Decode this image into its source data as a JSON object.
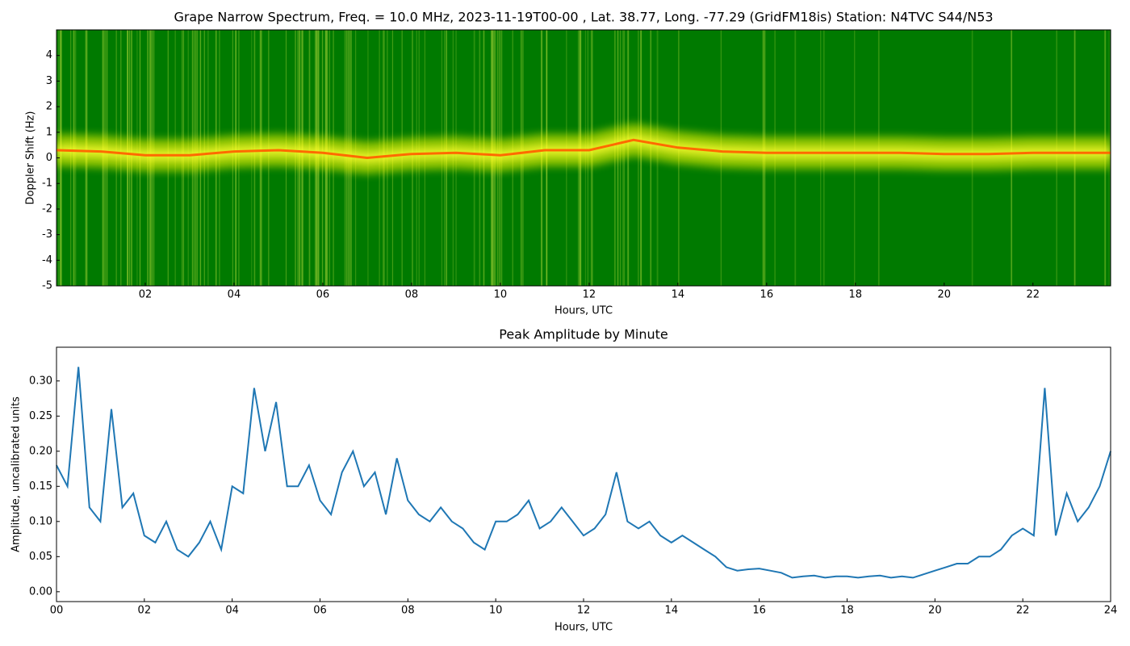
{
  "chart_data": [
    {
      "type": "spectrogram",
      "title": "Grape Narrow Spectrum, Freq. = 10.0 MHz, 2023-11-19T00-00 , Lat.  38.77, Long. -77.29 (GridFM18is) Station: N4TVC S44/N53",
      "xlabel": "Hours, UTC",
      "ylabel": "Doppler Shift (Hz)",
      "background": "#007a00",
      "color": "#ff6a00",
      "x": [
        0,
        1,
        2,
        3,
        4,
        5,
        6,
        7,
        8,
        9,
        10,
        11,
        12,
        13,
        14,
        15,
        16,
        17,
        18,
        19,
        20,
        21,
        22,
        23,
        23.75
      ],
      "values": [
        0.3,
        0.25,
        0.1,
        0.1,
        0.25,
        0.3,
        0.2,
        0.0,
        0.15,
        0.2,
        0.1,
        0.3,
        0.3,
        0.7,
        0.4,
        0.25,
        0.2,
        0.2,
        0.2,
        0.2,
        0.15,
        0.15,
        0.2,
        0.2,
        0.2
      ],
      "xlim": [
        0,
        23.75
      ],
      "xticks": [
        {
          "value": 2,
          "label": "02"
        },
        {
          "value": 4,
          "label": "04"
        },
        {
          "value": 6,
          "label": "06"
        },
        {
          "value": 8,
          "label": "08"
        },
        {
          "value": 10,
          "label": "10"
        },
        {
          "value": 12,
          "label": "12"
        },
        {
          "value": 14,
          "label": "14"
        },
        {
          "value": 16,
          "label": "16"
        },
        {
          "value": 18,
          "label": "18"
        },
        {
          "value": 20,
          "label": "20"
        },
        {
          "value": 22,
          "label": "22"
        }
      ],
      "ylim": [
        -5,
        5
      ],
      "yticks": [
        -5,
        -4,
        -3,
        -2,
        -1,
        0,
        1,
        2,
        3,
        4
      ]
    },
    {
      "type": "line",
      "title": "Peak Amplitude by Minute",
      "xlabel": "Hours, UTC",
      "ylabel": "Amplitude, uncalibrated units",
      "color": "#1f77b4",
      "x": [
        0,
        0.25,
        0.5,
        0.75,
        1,
        1.25,
        1.5,
        1.75,
        2,
        2.25,
        2.5,
        2.75,
        3,
        3.25,
        3.5,
        3.75,
        4,
        4.25,
        4.5,
        4.75,
        5,
        5.25,
        5.5,
        5.75,
        6,
        6.25,
        6.5,
        6.75,
        7,
        7.25,
        7.5,
        7.75,
        8,
        8.25,
        8.5,
        8.75,
        9,
        9.25,
        9.5,
        9.75,
        10,
        10.25,
        10.5,
        10.75,
        11,
        11.25,
        11.5,
        11.75,
        12,
        12.25,
        12.5,
        12.75,
        13,
        13.25,
        13.5,
        13.75,
        14,
        14.25,
        14.5,
        14.75,
        15,
        15.25,
        15.5,
        15.75,
        16,
        16.25,
        16.5,
        16.75,
        17,
        17.25,
        17.5,
        17.75,
        18,
        18.25,
        18.5,
        18.75,
        19,
        19.25,
        19.5,
        19.75,
        20,
        20.25,
        20.5,
        20.75,
        21,
        21.25,
        21.5,
        21.75,
        22,
        22.25,
        22.5,
        22.75,
        23,
        23.25,
        23.5,
        23.75,
        24
      ],
      "values": [
        0.18,
        0.15,
        0.32,
        0.12,
        0.1,
        0.26,
        0.12,
        0.14,
        0.08,
        0.07,
        0.1,
        0.06,
        0.05,
        0.07,
        0.1,
        0.06,
        0.15,
        0.14,
        0.29,
        0.2,
        0.27,
        0.15,
        0.15,
        0.18,
        0.13,
        0.11,
        0.17,
        0.2,
        0.15,
        0.17,
        0.11,
        0.19,
        0.13,
        0.11,
        0.1,
        0.12,
        0.1,
        0.09,
        0.07,
        0.06,
        0.1,
        0.1,
        0.11,
        0.13,
        0.09,
        0.1,
        0.12,
        0.1,
        0.08,
        0.09,
        0.11,
        0.17,
        0.1,
        0.09,
        0.1,
        0.08,
        0.07,
        0.08,
        0.07,
        0.06,
        0.05,
        0.035,
        0.03,
        0.032,
        0.033,
        0.03,
        0.027,
        0.02,
        0.022,
        0.023,
        0.02,
        0.022,
        0.022,
        0.02,
        0.022,
        0.023,
        0.02,
        0.022,
        0.02,
        0.025,
        0.03,
        0.035,
        0.04,
        0.04,
        0.05,
        0.05,
        0.06,
        0.08,
        0.09,
        0.08,
        0.29,
        0.08,
        0.14,
        0.1,
        0.12,
        0.15,
        0.2
      ],
      "xlim": [
        0,
        24
      ],
      "xticks": [
        {
          "value": 0,
          "label": "00"
        },
        {
          "value": 2,
          "label": "02"
        },
        {
          "value": 4,
          "label": "04"
        },
        {
          "value": 6,
          "label": "06"
        },
        {
          "value": 8,
          "label": "08"
        },
        {
          "value": 10,
          "label": "10"
        },
        {
          "value": 12,
          "label": "12"
        },
        {
          "value": 14,
          "label": "14"
        },
        {
          "value": 16,
          "label": "16"
        },
        {
          "value": 18,
          "label": "18"
        },
        {
          "value": 20,
          "label": "20"
        },
        {
          "value": 22,
          "label": "22"
        },
        {
          "value": 24,
          "label": "24"
        }
      ],
      "ylim": [
        -0.014,
        0.348
      ],
      "yticks": [
        {
          "value": 0,
          "label": "0.00"
        },
        {
          "value": 0.05,
          "label": "0.05"
        },
        {
          "value": 0.1,
          "label": "0.10"
        },
        {
          "value": 0.15,
          "label": "0.15"
        },
        {
          "value": 0.2,
          "label": "0.20"
        },
        {
          "value": 0.25,
          "label": "0.25"
        },
        {
          "value": 0.3,
          "label": "0.30"
        }
      ]
    }
  ]
}
